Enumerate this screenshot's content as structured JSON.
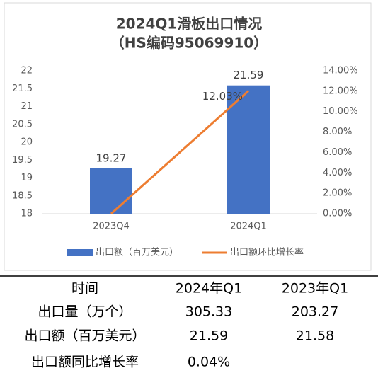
{
  "chart_data": {
    "type": "bar",
    "title": "2024Q1滑板出口情况",
    "subtitle": "（HS编码95069910）",
    "categories": [
      "2023Q4",
      "2024Q1"
    ],
    "series": [
      {
        "name": "出口额（百万美元）",
        "type": "bar",
        "color": "#4472c4",
        "values": [
          19.27,
          21.59
        ]
      },
      {
        "name": "出口额环比增长率",
        "type": "line",
        "color": "#ed7d31",
        "axis": "y2",
        "values": [
          0,
          12.03
        ],
        "value_labels": [
          null,
          "12.03%"
        ]
      }
    ],
    "ylim": [
      18,
      22
    ],
    "yticks": [
      18,
      18.5,
      19,
      19.5,
      20,
      20.5,
      21,
      21.5,
      22
    ],
    "y2lim": [
      0,
      14
    ],
    "y2ticks": [
      {
        "value": 0,
        "label": "0.00%"
      },
      {
        "value": 2,
        "label": "2.00%"
      },
      {
        "value": 4,
        "label": "4.00%"
      },
      {
        "value": 6,
        "label": "6.00%"
      },
      {
        "value": 8,
        "label": "8.00%"
      },
      {
        "value": 10,
        "label": "10.00%"
      },
      {
        "value": 12,
        "label": "12.00%"
      },
      {
        "value": 14,
        "label": "14.00%"
      }
    ],
    "grid": false,
    "legend": "bottom"
  },
  "table": {
    "header": [
      "时间",
      "2024年Q1",
      "2023年Q1"
    ],
    "rows": [
      [
        "出口量（万个）",
        "305.33",
        "203.27"
      ],
      [
        "出口额（百万美元）",
        "21.59",
        "21.58"
      ],
      [
        "出口额同比增长率",
        "0.04%",
        ""
      ]
    ]
  }
}
